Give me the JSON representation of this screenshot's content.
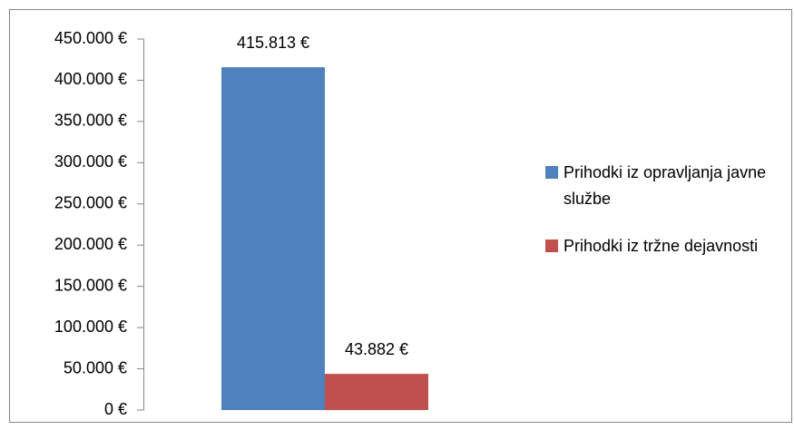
{
  "chart_data": {
    "type": "bar",
    "categories": [
      null
    ],
    "series": [
      {
        "name": "Prihodki iz opravljanja javne službe",
        "color": "#4f81bd",
        "values": [
          415813
        ],
        "value_labels": [
          "415.813 €"
        ]
      },
      {
        "name": "Prihodki iz tržne dejavnosti",
        "color": "#c0504d",
        "values": [
          43882
        ],
        "value_labels": [
          "43.882 €"
        ]
      }
    ],
    "ylim": [
      0,
      450000
    ],
    "yticks": [
      {
        "value": 0,
        "label": "0 €"
      },
      {
        "value": 50000,
        "label": "50.000 €"
      },
      {
        "value": 100000,
        "label": "100.000 €"
      },
      {
        "value": 150000,
        "label": "150.000 €"
      },
      {
        "value": 200000,
        "label": "200.000 €"
      },
      {
        "value": 250000,
        "label": "250.000 €"
      },
      {
        "value": 300000,
        "label": "300.000 €"
      },
      {
        "value": 350000,
        "label": "350.000 €"
      },
      {
        "value": 400000,
        "label": "400.000 €"
      },
      {
        "value": 450000,
        "label": "450.000 €"
      }
    ],
    "legend": "right"
  }
}
